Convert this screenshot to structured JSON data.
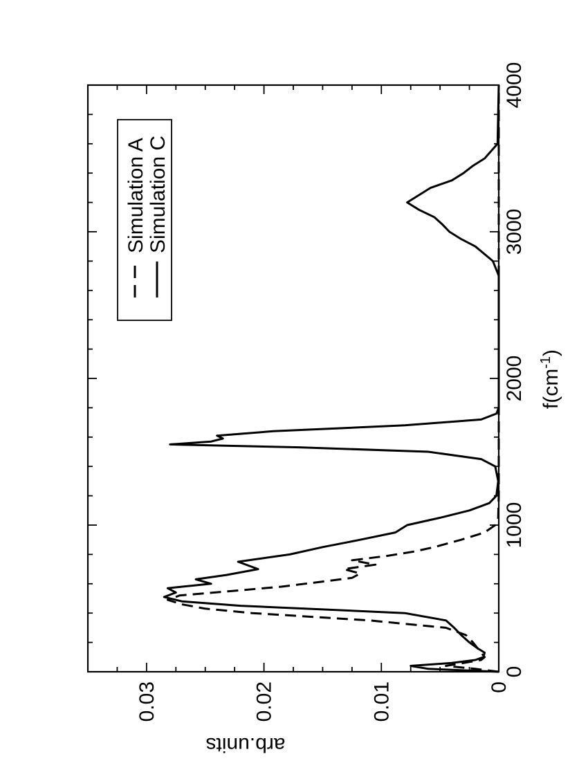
{
  "chart_data": {
    "type": "line",
    "orientation": "rotated-90-ccw",
    "xlabel": "f(cm",
    "xlabel_sup": "-1",
    "xlabel_close": ")",
    "ylabel": "arb.units",
    "xlim": [
      0,
      4000
    ],
    "ylim": [
      0,
      0.035
    ],
    "x_ticks": [
      "0",
      "1000",
      "2000",
      "3000",
      "4000"
    ],
    "y_ticks": [
      "0",
      "0.01",
      "0.02",
      "0.03"
    ],
    "grid": false,
    "legend_placement": "top-right",
    "series": [
      {
        "name": "Simulation A",
        "style": "dashed",
        "x": [
          0,
          20,
          40,
          60,
          80,
          100,
          150,
          200,
          250,
          300,
          350,
          400,
          430,
          460,
          490,
          520,
          550,
          580,
          610,
          640,
          670,
          700,
          730,
          760,
          790,
          820,
          850,
          900,
          950,
          1000,
          1050,
          1200,
          1500,
          2000,
          3000,
          4000
        ],
        "y": [
          0,
          0.002,
          0.0045,
          0.003,
          0.0015,
          0.0012,
          0.0017,
          0.0022,
          0.0028,
          0.0045,
          0.011,
          0.021,
          0.025,
          0.027,
          0.0282,
          0.0272,
          0.0228,
          0.0185,
          0.0155,
          0.0125,
          0.0118,
          0.0132,
          0.0105,
          0.0125,
          0.0095,
          0.0072,
          0.0055,
          0.0032,
          0.0012,
          0.0003,
          5e-05,
          0,
          0,
          0,
          0,
          0
        ]
      },
      {
        "name": "Simulation C",
        "style": "solid",
        "x": [
          0,
          20,
          40,
          60,
          80,
          100,
          130,
          160,
          200,
          250,
          300,
          350,
          400,
          450,
          480,
          510,
          540,
          570,
          600,
          630,
          660,
          700,
          750,
          800,
          850,
          900,
          950,
          1000,
          1050,
          1100,
          1150,
          1200,
          1300,
          1400,
          1450,
          1500,
          1530,
          1550,
          1570,
          1590,
          1610,
          1640,
          1680,
          1720,
          1760,
          1800,
          2000,
          2400,
          2700,
          2800,
          2900,
          2950,
          3000,
          3050,
          3100,
          3150,
          3200,
          3250,
          3300,
          3350,
          3400,
          3450,
          3500,
          3600,
          4000
        ],
        "y": [
          0,
          0.006,
          0.0075,
          0.004,
          0.002,
          0.0013,
          0.0012,
          0.0018,
          0.0025,
          0.0032,
          0.0038,
          0.0045,
          0.008,
          0.022,
          0.027,
          0.0285,
          0.0275,
          0.0282,
          0.0245,
          0.0258,
          0.0232,
          0.0205,
          0.0222,
          0.0178,
          0.015,
          0.0118,
          0.0088,
          0.0078,
          0.005,
          0.0025,
          0.0008,
          0.0002,
          5e-05,
          0.0003,
          0.0015,
          0.006,
          0.017,
          0.028,
          0.0245,
          0.0235,
          0.024,
          0.0192,
          0.008,
          0.0015,
          0.0002,
          0,
          0,
          0,
          0,
          0.0005,
          0.002,
          0.0032,
          0.0042,
          0.0048,
          0.0055,
          0.0068,
          0.0078,
          0.0068,
          0.0058,
          0.004,
          0.003,
          0.0022,
          0.0012,
          0.0001,
          0
        ]
      }
    ]
  }
}
